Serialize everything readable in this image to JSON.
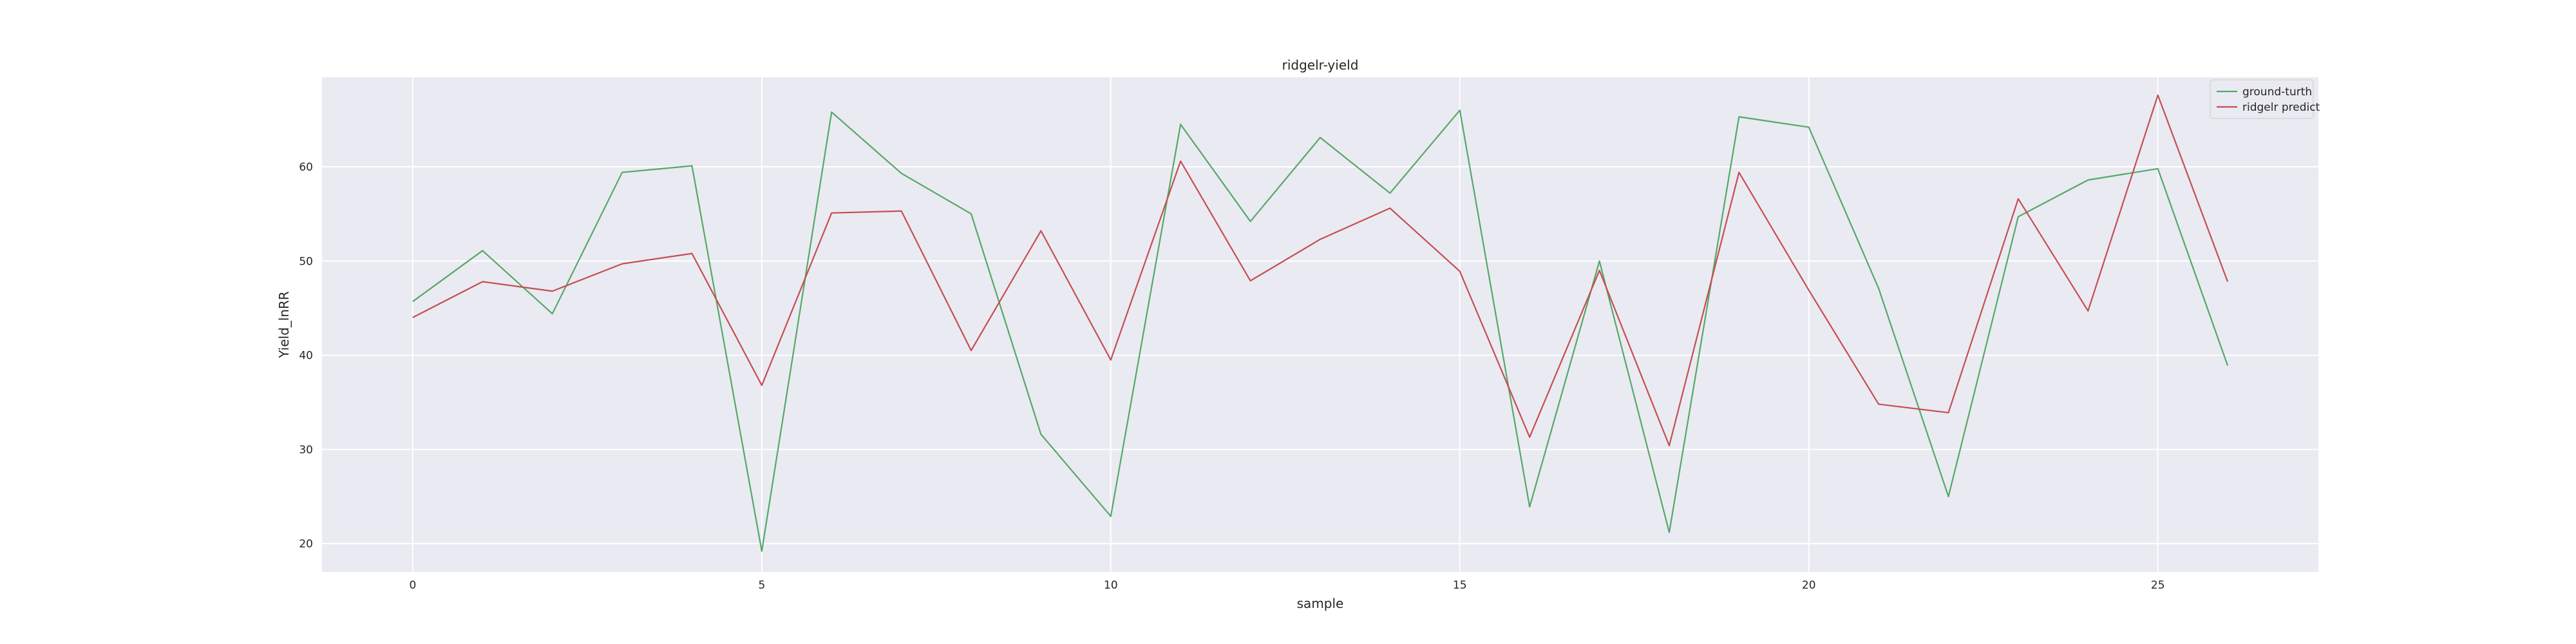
{
  "chart_data": {
    "type": "line",
    "title": "ridgelr-yield",
    "xlabel": "sample",
    "ylabel": "Yield_lnRR",
    "x": [
      0,
      1,
      2,
      3,
      4,
      5,
      6,
      7,
      8,
      9,
      10,
      11,
      12,
      13,
      14,
      15,
      16,
      17,
      18,
      19,
      20,
      21,
      22,
      23,
      24,
      25,
      26
    ],
    "xlim": [
      -1.3,
      27.3
    ],
    "ylim": [
      17.0,
      69.5
    ],
    "xticks": [
      0,
      5,
      10,
      15,
      20,
      25
    ],
    "yticks": [
      20,
      30,
      40,
      50,
      60
    ],
    "grid": true,
    "legend_position": "top-right",
    "series": [
      {
        "name": "ground-turth",
        "color": "#55a868",
        "values": [
          45.7,
          51.1,
          44.4,
          59.4,
          60.1,
          19.2,
          65.8,
          59.3,
          55.0,
          31.6,
          22.9,
          64.5,
          54.2,
          63.1,
          57.2,
          66.0,
          23.9,
          50.0,
          21.2,
          65.3,
          64.2,
          47.1,
          25.0,
          54.7,
          58.6,
          59.8,
          38.9
        ]
      },
      {
        "name": "ridgelr predict",
        "color": "#c44e52",
        "values": [
          44.0,
          47.8,
          46.8,
          49.7,
          50.8,
          36.8,
          55.1,
          55.3,
          40.5,
          53.2,
          39.5,
          60.6,
          47.9,
          52.3,
          55.6,
          48.9,
          31.3,
          49.0,
          30.4,
          59.4,
          46.9,
          34.8,
          33.9,
          56.6,
          44.7,
          67.6,
          47.8
        ]
      }
    ]
  }
}
